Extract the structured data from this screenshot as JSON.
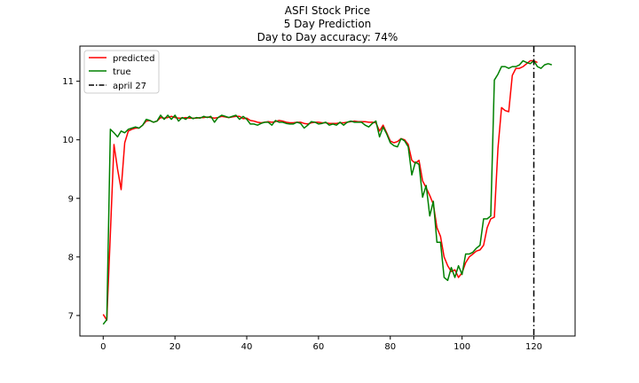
{
  "chart_data": {
    "type": "line",
    "title_lines": [
      "ASFI Stock Price",
      "5 Day Prediction",
      "Day to Day accuracy: 74%"
    ],
    "xlabel": "",
    "ylabel": "",
    "xlim": [
      -6.5,
      131.5
    ],
    "ylim": [
      6.65,
      11.6
    ],
    "xticks": [
      0,
      20,
      40,
      60,
      80,
      100,
      120
    ],
    "yticks": [
      7,
      8,
      9,
      10,
      11
    ],
    "grid": false,
    "legend_position": "top-left",
    "vline": {
      "name": "april 27",
      "x": 120,
      "color": "#000000",
      "style": "dash-dot"
    },
    "series": [
      {
        "name": "predicted",
        "color": "#ff0000",
        "x": [
          0,
          1,
          2,
          3,
          4,
          5,
          6,
          7,
          8,
          9,
          10,
          11,
          12,
          13,
          14,
          15,
          16,
          17,
          18,
          19,
          20,
          21,
          22,
          23,
          24,
          25,
          26,
          27,
          28,
          29,
          30,
          31,
          32,
          33,
          34,
          35,
          36,
          37,
          38,
          39,
          40,
          41,
          42,
          43,
          44,
          45,
          46,
          47,
          48,
          49,
          50,
          51,
          52,
          53,
          54,
          55,
          56,
          57,
          58,
          59,
          60,
          61,
          62,
          63,
          64,
          65,
          66,
          67,
          68,
          69,
          70,
          71,
          72,
          73,
          74,
          75,
          76,
          77,
          78,
          79,
          80,
          81,
          82,
          83,
          84,
          85,
          86,
          87,
          88,
          89,
          90,
          91,
          92,
          93,
          94,
          95,
          96,
          97,
          98,
          99,
          100,
          101,
          102,
          103,
          104,
          105,
          106,
          107,
          108,
          109,
          110,
          111,
          112,
          113,
          114,
          115,
          116,
          117,
          118,
          119,
          120,
          121
        ],
        "values": [
          7.02,
          6.92,
          8.4,
          9.92,
          9.5,
          9.15,
          9.95,
          10.15,
          10.18,
          10.2,
          10.2,
          10.25,
          10.32,
          10.33,
          10.3,
          10.32,
          10.38,
          10.37,
          10.38,
          10.4,
          10.38,
          10.37,
          10.37,
          10.38,
          10.37,
          10.37,
          10.37,
          10.38,
          10.38,
          10.39,
          10.38,
          10.37,
          10.38,
          10.4,
          10.39,
          10.38,
          10.39,
          10.4,
          10.4,
          10.36,
          10.37,
          10.33,
          10.32,
          10.3,
          10.29,
          10.3,
          10.31,
          10.3,
          10.31,
          10.33,
          10.32,
          10.3,
          10.29,
          10.29,
          10.3,
          10.3,
          10.28,
          10.27,
          10.29,
          10.3,
          10.3,
          10.29,
          10.29,
          10.28,
          10.28,
          10.28,
          10.29,
          10.29,
          10.3,
          10.31,
          10.32,
          10.31,
          10.31,
          10.31,
          10.3,
          10.3,
          10.29,
          10.15,
          10.25,
          10.12,
          9.98,
          9.95,
          9.97,
          10.02,
          10.0,
          9.92,
          9.65,
          9.6,
          9.65,
          9.3,
          9.18,
          9.05,
          8.9,
          8.5,
          8.35,
          8.0,
          7.85,
          7.75,
          7.78,
          7.65,
          7.73,
          7.9,
          8.0,
          8.05,
          8.1,
          8.12,
          8.2,
          8.5,
          8.65,
          8.68,
          9.85,
          10.55,
          10.5,
          10.48,
          11.1,
          11.22,
          11.22,
          11.25,
          11.3,
          11.35,
          11.35,
          11.32
        ]
      },
      {
        "name": "true",
        "color": "#008000",
        "x": [
          0,
          1,
          2,
          3,
          4,
          5,
          6,
          7,
          8,
          9,
          10,
          11,
          12,
          13,
          14,
          15,
          16,
          17,
          18,
          19,
          20,
          21,
          22,
          23,
          24,
          25,
          26,
          27,
          28,
          29,
          30,
          31,
          32,
          33,
          34,
          35,
          36,
          37,
          38,
          39,
          40,
          41,
          42,
          43,
          44,
          45,
          46,
          47,
          48,
          49,
          50,
          51,
          52,
          53,
          54,
          55,
          56,
          57,
          58,
          59,
          60,
          61,
          62,
          63,
          64,
          65,
          66,
          67,
          68,
          69,
          70,
          71,
          72,
          73,
          74,
          75,
          76,
          77,
          78,
          79,
          80,
          81,
          82,
          83,
          84,
          85,
          86,
          87,
          88,
          89,
          90,
          91,
          92,
          93,
          94,
          95,
          96,
          97,
          98,
          99,
          100,
          101,
          102,
          103,
          104,
          105,
          106,
          107,
          108,
          109,
          110,
          111,
          112,
          113,
          114,
          115,
          116,
          117,
          118,
          119,
          120,
          121,
          122,
          123,
          124,
          125
        ],
        "values": [
          6.85,
          6.93,
          10.18,
          10.12,
          10.05,
          10.15,
          10.12,
          10.18,
          10.2,
          10.22,
          10.2,
          10.25,
          10.35,
          10.33,
          10.3,
          10.32,
          10.42,
          10.35,
          10.42,
          10.35,
          10.42,
          10.32,
          10.38,
          10.35,
          10.4,
          10.36,
          10.38,
          10.37,
          10.4,
          10.38,
          10.4,
          10.3,
          10.38,
          10.42,
          10.4,
          10.38,
          10.4,
          10.42,
          10.35,
          10.4,
          10.35,
          10.27,
          10.27,
          10.25,
          10.28,
          10.3,
          10.3,
          10.25,
          10.33,
          10.3,
          10.3,
          10.28,
          10.27,
          10.27,
          10.3,
          10.28,
          10.2,
          10.25,
          10.31,
          10.3,
          10.27,
          10.28,
          10.3,
          10.25,
          10.27,
          10.25,
          10.3,
          10.25,
          10.3,
          10.32,
          10.3,
          10.3,
          10.3,
          10.25,
          10.22,
          10.28,
          10.32,
          10.05,
          10.22,
          10.1,
          9.95,
          9.9,
          9.88,
          10.02,
          9.98,
          9.88,
          9.4,
          9.62,
          9.58,
          9.02,
          9.22,
          8.7,
          8.95,
          8.25,
          8.25,
          7.65,
          7.6,
          7.82,
          7.65,
          7.85,
          7.7,
          8.05,
          8.05,
          8.08,
          8.15,
          8.2,
          8.65,
          8.65,
          8.7,
          11.02,
          11.12,
          11.25,
          11.25,
          11.22,
          11.25,
          11.25,
          11.28,
          11.35,
          11.32,
          11.3,
          11.35,
          11.25,
          11.22,
          11.28,
          11.3,
          11.28
        ]
      }
    ]
  }
}
